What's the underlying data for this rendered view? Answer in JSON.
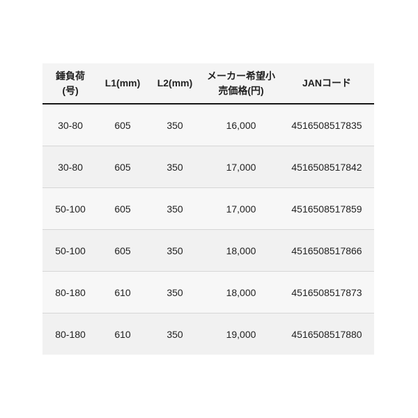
{
  "colors": {
    "page_background": "#ffffff",
    "panel_background": "#f4f4f4",
    "row_odd_background": "#f7f7f7",
    "row_even_background": "#f1f1f1",
    "header_rule": "#161616",
    "row_divider": "#d6d6d6",
    "text": "#222222"
  },
  "table": {
    "columns": [
      {
        "key": "load",
        "label": "錘負荷\n(号)"
      },
      {
        "key": "l1",
        "label": "L1(mm)"
      },
      {
        "key": "l2",
        "label": "L2(mm)"
      },
      {
        "key": "price",
        "label": "メーカー希望小\n売価格(円)"
      },
      {
        "key": "jan",
        "label": "JANコード"
      }
    ],
    "rows": [
      [
        "30-80",
        "605",
        "350",
        "16,000",
        "4516508517835"
      ],
      [
        "30-80",
        "605",
        "350",
        "17,000",
        "4516508517842"
      ],
      [
        "50-100",
        "605",
        "350",
        "17,000",
        "4516508517859"
      ],
      [
        "50-100",
        "605",
        "350",
        "18,000",
        "4516508517866"
      ],
      [
        "80-180",
        "610",
        "350",
        "18,000",
        "4516508517873"
      ],
      [
        "80-180",
        "610",
        "350",
        "19,000",
        "4516508517880"
      ]
    ]
  },
  "chart_data": {
    "type": "table",
    "title": "",
    "columns": [
      "錘負荷(号)",
      "L1(mm)",
      "L2(mm)",
      "メーカー希望小売価格(円)",
      "JANコード"
    ],
    "rows": [
      [
        "30-80",
        605,
        350,
        16000,
        "4516508517835"
      ],
      [
        "30-80",
        605,
        350,
        17000,
        "4516508517842"
      ],
      [
        "50-100",
        605,
        350,
        17000,
        "4516508517859"
      ],
      [
        "50-100",
        605,
        350,
        18000,
        "4516508517866"
      ],
      [
        "80-180",
        610,
        350,
        18000,
        "4516508517873"
      ],
      [
        "80-180",
        610,
        350,
        19000,
        "4516508517880"
      ]
    ]
  }
}
